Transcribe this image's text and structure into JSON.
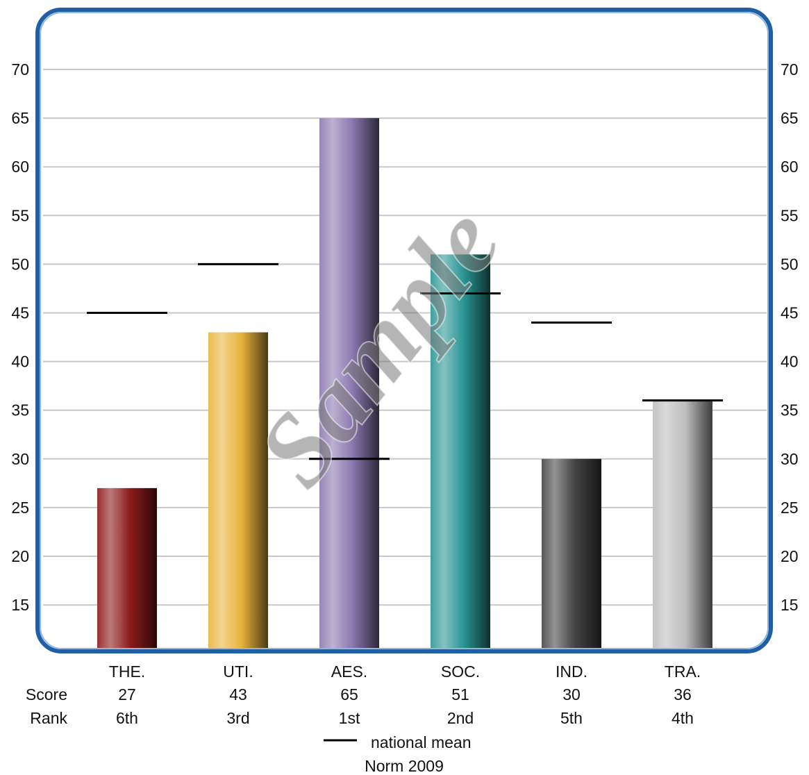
{
  "chart_data": {
    "type": "bar",
    "categories": [
      "THE.",
      "UTI.",
      "AES.",
      "SOC.",
      "IND.",
      "TRA."
    ],
    "values": [
      27,
      43,
      65,
      51,
      30,
      36
    ],
    "national_mean": [
      45,
      50,
      30,
      47,
      44,
      36
    ],
    "ranks": [
      "6th",
      "3rd",
      "1st",
      "2nd",
      "5th",
      "4th"
    ],
    "bar_colors": [
      "#8b1a1a",
      "#e8b43c",
      "#8a79b0",
      "#2a9594",
      "#444444",
      "#bdbdbd"
    ],
    "y_ticks": [
      15,
      20,
      25,
      30,
      35,
      40,
      45,
      50,
      55,
      60,
      65,
      70
    ],
    "ylim": [
      10,
      73
    ],
    "grid": true,
    "frame_color": "#1f5fa6"
  },
  "row_labels": {
    "score": "Score",
    "rank": "Rank"
  },
  "legend": {
    "label": "national mean"
  },
  "footer": "Norm 2009",
  "watermark": "Sample"
}
